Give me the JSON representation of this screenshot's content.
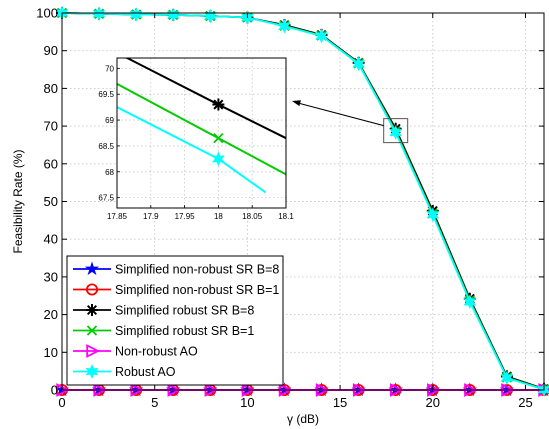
{
  "chart_data": {
    "type": "line",
    "xlabel": "γ (dB)",
    "ylabel": "Feasibility Rate (%)",
    "xlim": [
      0,
      26
    ],
    "ylim": [
      0,
      100
    ],
    "xticks": [
      0,
      5,
      10,
      15,
      20,
      25
    ],
    "yticks": [
      0,
      10,
      20,
      30,
      40,
      50,
      60,
      70,
      80,
      90,
      100
    ],
    "x": [
      0,
      2,
      4,
      6,
      8,
      10,
      12,
      14,
      16,
      18,
      20,
      22,
      24,
      26
    ],
    "grid": true,
    "legend_position": "bottom-left",
    "series": [
      {
        "name": "Simplified non-robust SR B=8",
        "color": "#0000ff",
        "marker": "star",
        "values": [
          0,
          0,
          0,
          0,
          0,
          0,
          0,
          0,
          0,
          0,
          0,
          0,
          0,
          0
        ]
      },
      {
        "name": "Simplified non-robust SR B=1",
        "color": "#ff0000",
        "marker": "circle",
        "values": [
          0,
          0,
          0,
          0,
          0,
          0,
          0,
          0,
          0,
          0,
          0,
          0,
          0,
          0
        ]
      },
      {
        "name": "Simplified robust SR B=8",
        "color": "#000000",
        "marker": "asterisk",
        "values": [
          100,
          99.8,
          99.6,
          99.5,
          99.2,
          98.8,
          96.8,
          94.2,
          86.8,
          69.3,
          47.5,
          24.2,
          3.6,
          0.3
        ]
      },
      {
        "name": "Simplified robust SR B=1",
        "color": "#00cc00",
        "marker": "x",
        "values": [
          100,
          99.8,
          99.6,
          99.5,
          99.2,
          98.8,
          96.6,
          94.0,
          86.6,
          68.6,
          46.8,
          23.7,
          3.3,
          0.2
        ]
      },
      {
        "name": "Non-robust AO",
        "color": "#ff00ff",
        "marker": "triangle-right",
        "values": [
          0,
          0,
          0,
          0,
          0,
          0,
          0,
          0,
          0,
          0,
          0,
          0,
          0,
          0
        ]
      },
      {
        "name": "Robust AO",
        "color": "#00ffff",
        "marker": "hexagram",
        "values": [
          100,
          99.8,
          99.6,
          99.5,
          99.2,
          98.8,
          96.5,
          93.9,
          86.5,
          68.3,
          46.5,
          23.4,
          3.2,
          0.1
        ]
      }
    ],
    "inset": {
      "xlim": [
        17.85,
        18.1
      ],
      "ylim": [
        67.3,
        70.2
      ],
      "xticks": [
        17.85,
        17.9,
        17.95,
        18,
        18.05,
        18.1
      ],
      "yticks": [
        67.5,
        68,
        68.5,
        69,
        69.5,
        70
      ],
      "series": [
        {
          "color": "#000000",
          "x": [
            17.85,
            18,
            18.1
          ],
          "y": [
            70.3,
            69.3,
            68.65
          ],
          "marker_x": 18,
          "marker_y": 69.3,
          "marker": "asterisk"
        },
        {
          "color": "#00cc00",
          "x": [
            17.85,
            18,
            18.1
          ],
          "y": [
            69.7,
            68.65,
            67.95
          ],
          "marker_x": 18,
          "marker_y": 68.65,
          "marker": "x"
        },
        {
          "color": "#00ffff",
          "x": [
            17.85,
            18,
            18.07
          ],
          "y": [
            69.25,
            68.25,
            67.6
          ],
          "marker_x": 18,
          "marker_y": 68.25,
          "marker": "hexagram"
        }
      ],
      "zoom_center": [
        18,
        68.8
      ]
    }
  }
}
